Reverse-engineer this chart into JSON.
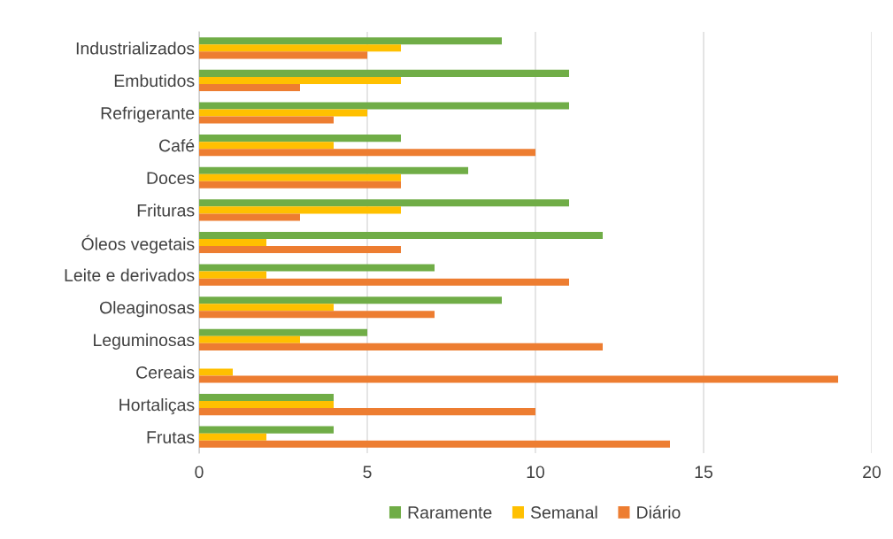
{
  "chart_data": {
    "type": "bar",
    "orientation": "horizontal",
    "categories": [
      "Industrializados",
      "Embutidos",
      "Refrigerante",
      "Café",
      "Doces",
      "Frituras",
      "Óleos vegetais",
      "Leite e derivados",
      "Oleaginosas",
      "Leguminosas",
      "Cereais",
      "Hortaliças",
      "Frutas"
    ],
    "series": [
      {
        "name": "Raramente",
        "color": "#70ad47",
        "values": [
          9,
          11,
          11,
          6,
          8,
          11,
          12,
          7,
          9,
          5,
          0,
          4,
          4
        ]
      },
      {
        "name": "Semanal",
        "color": "#ffc000",
        "values": [
          6,
          6,
          5,
          4,
          6,
          6,
          2,
          2,
          4,
          3,
          1,
          4,
          2
        ]
      },
      {
        "name": "Diário",
        "color": "#ed7d31",
        "values": [
          5,
          3,
          4,
          10,
          6,
          3,
          6,
          11,
          7,
          12,
          19,
          10,
          14
        ]
      }
    ],
    "xlim": [
      0,
      20
    ],
    "xticks": [
      0,
      5,
      10,
      15,
      20
    ],
    "grid": "x",
    "legend": "bottom"
  }
}
